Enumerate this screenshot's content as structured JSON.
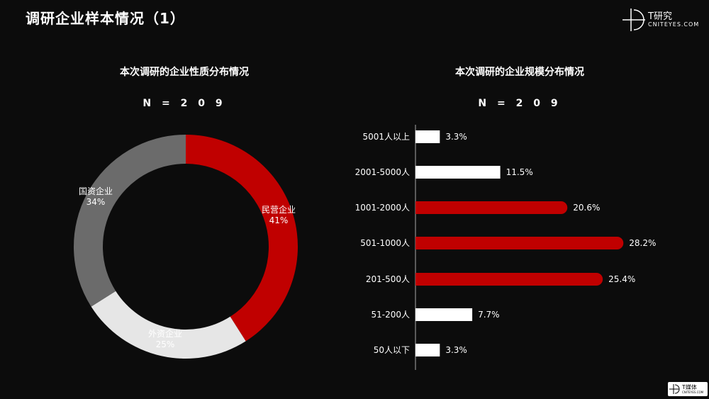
{
  "slide": {
    "title": "调研企业样本情况（1）"
  },
  "brand": {
    "name": "T研究",
    "sub": "CNITEYES.COM"
  },
  "footer": {
    "name": "T媒体",
    "sub": "CNITEYES.COM"
  },
  "chart_data": [
    {
      "type": "pie",
      "title": "本次调研的企业性质分布情况",
      "subtitle": "N = 2 0 9",
      "slices": [
        {
          "label": "民营企业",
          "value": 41,
          "value_label": "41%",
          "color": "#c00000"
        },
        {
          "label": "外资企业",
          "value": 25,
          "value_label": "25%",
          "color": "#e6e6e6"
        },
        {
          "label": "国资企业",
          "value": 34,
          "value_label": "34%",
          "color": "#6b6b6b"
        }
      ],
      "donut": true
    },
    {
      "type": "bar",
      "orientation": "horizontal",
      "title": "本次调研的企业规模分布情况",
      "subtitle": "N = 2 0 9",
      "categories": [
        "5001人以上",
        "2001-5000人",
        "1001-2000人",
        "501-1000人",
        "201-500人",
        "51-200人",
        "50人以下"
      ],
      "values": [
        3.3,
        11.5,
        20.6,
        28.2,
        25.4,
        7.7,
        3.3
      ],
      "value_labels": [
        "3.3%",
        "11.5%",
        "20.6%",
        "28.2%",
        "25.4%",
        "7.7%",
        "3.3%"
      ],
      "highlight": [
        false,
        false,
        true,
        true,
        true,
        false,
        false
      ],
      "colors": {
        "highlight": "#c00000",
        "normal": "#ffffff"
      }
    }
  ]
}
